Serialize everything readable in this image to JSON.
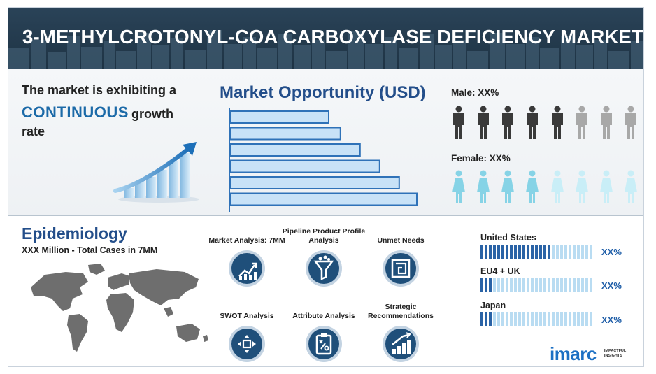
{
  "header": {
    "title": "3-METHYLCROTONYL-COA CARBOXYLASE DEFICIENCY MARKET"
  },
  "hero": {
    "line1": "The market is exhibiting a",
    "emphasis": "CONTINUOUS",
    "line2_rest": "growth",
    "line3": "rate"
  },
  "market_opportunity": {
    "title": "Market Opportunity (USD)",
    "bars": [
      0.5,
      0.56,
      0.66,
      0.76,
      0.86,
      0.95
    ],
    "bar_fill": "#c8e2f7",
    "bar_stroke": "#2f72b8"
  },
  "demographics": {
    "male_label": "Male: XX%",
    "female_label": "Female: XX%",
    "male_highlighted": 5,
    "male_total": 8,
    "female_highlighted": 4,
    "female_total": 8,
    "male_color": "#3a3a3a",
    "male_muted": "#a8a8a8",
    "female_color": "#86d3e6",
    "female_muted": "#c9eef7"
  },
  "epidemiology": {
    "title": "Epidemiology",
    "subtitle": "XXX Million - Total Cases in 7MM"
  },
  "features": [
    {
      "label": "Market Analysis: 7MM",
      "icon": "chart-growth-icon"
    },
    {
      "label": "Pipeline Product Profile Analysis",
      "icon": "funnel-icon"
    },
    {
      "label": "Unmet Needs",
      "icon": "maze-icon"
    },
    {
      "label": "SWOT Analysis",
      "icon": "swot-arrows-icon"
    },
    {
      "label": "Attribute Analysis",
      "icon": "clipboard-strategy-icon"
    },
    {
      "label": "Strategic Recommendations",
      "icon": "bar-growth-icon"
    }
  ],
  "regions": [
    {
      "name": "United States",
      "value": "XX%",
      "fill": 0.62
    },
    {
      "name": "EU4 + UK",
      "value": "XX%",
      "fill": 0.1
    },
    {
      "name": "Japan",
      "value": "XX%",
      "fill": 0.1
    }
  ],
  "logo": {
    "word": "imarc",
    "tagline": "IMPACTFUL INSIGHTS"
  }
}
